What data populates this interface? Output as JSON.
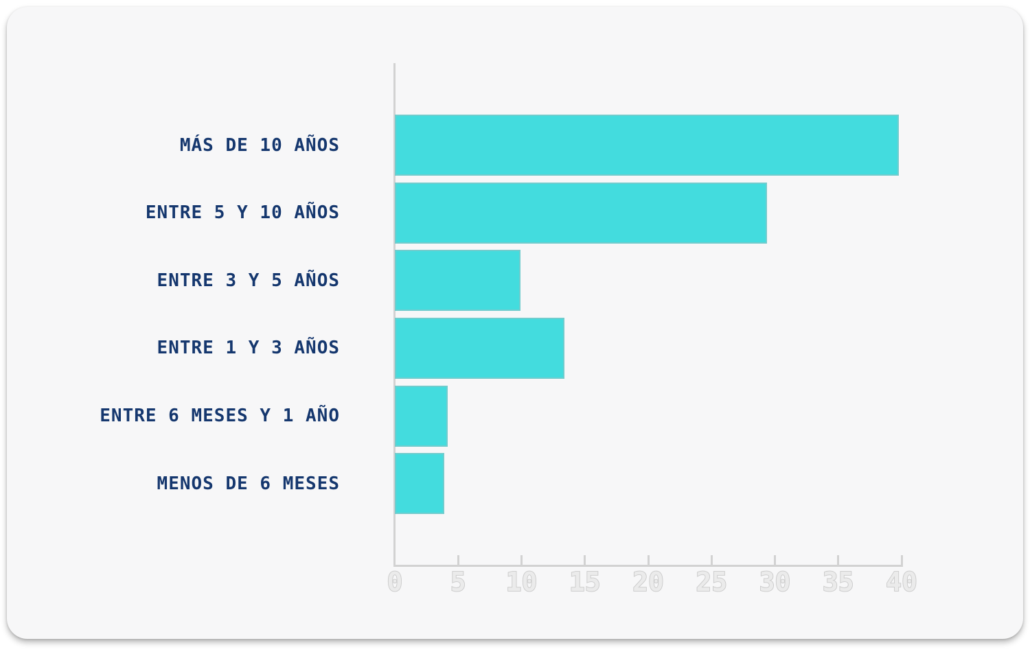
{
  "page": {
    "background_color": "#ffffff",
    "card_background_color": "#f7f7f8"
  },
  "chart_data": {
    "type": "bar",
    "orientation": "horizontal",
    "title": "",
    "xlabel": "",
    "ylabel": "",
    "categories": [
      "MÁS DE 10 AÑOS",
      "ENTRE 5 Y 10 AÑOS",
      "ENTRE 3 Y 5 AÑOS",
      "ENTRE 1 Y 3 AÑOS",
      "ENTRE 6 MESES Y 1 AÑO",
      "MENOS DE 6 MESES"
    ],
    "values": [
      39.8,
      29.4,
      9.9,
      13.4,
      4.2,
      3.9
    ],
    "xticks": [
      0,
      5,
      10,
      15,
      20,
      25,
      30,
      35,
      40
    ],
    "xlim": [
      0,
      40
    ],
    "grid": false,
    "legend": false,
    "bar_color": "#43dcde",
    "category_label_color": "#15376e",
    "axis_color": "#d2d2d2",
    "tick_label_fill_color": "#ebebeb",
    "tick_label_outline_color": "#c9c9c9"
  }
}
